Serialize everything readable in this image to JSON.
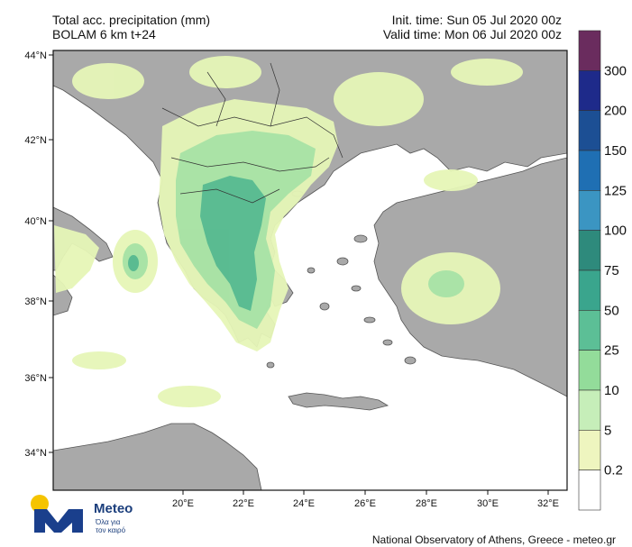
{
  "header": {
    "title_line1": "Total acc. precipitation (mm)",
    "title_line2": "BOLAM 6 km t+24",
    "init_time": "Init. time: Sun 05 Jul 2020 00z",
    "valid_time": "Valid time: Mon 06 Jul 2020 00z"
  },
  "axes": {
    "lat_labels": [
      "44°N",
      "42°N",
      "40°N",
      "38°N",
      "36°N",
      "34°N"
    ],
    "lon_labels": [
      "20°E",
      "22°E",
      "24°E",
      "26°E",
      "28°E",
      "30°E",
      "32°E"
    ]
  },
  "colorbar": {
    "labels": [
      "300",
      "200",
      "150",
      "125",
      "100",
      "75",
      "50",
      "25",
      "10",
      "5",
      "0.2"
    ],
    "colors": [
      "#6a2c5e",
      "#1e2a8a",
      "#1c4f94",
      "#1f6fb3",
      "#3b95c2",
      "#2e8a7c",
      "#3aa58d",
      "#5cbf96",
      "#93dc9a",
      "#c6eeb9",
      "#eef5bf",
      "#ffffff"
    ]
  },
  "colors": {
    "sea": "#ffffff",
    "land": "#a9a9a9",
    "light_rain": "#e6f6b7",
    "moderate_rain": "#a6e2a5",
    "heavy_rain": "#56b990"
  },
  "logo": {
    "name": "Meteo",
    "tagline1": "Όλα για",
    "tagline2": "τον καιρό"
  },
  "footer": "National Observatory of Athens, Greece - meteo.gr"
}
